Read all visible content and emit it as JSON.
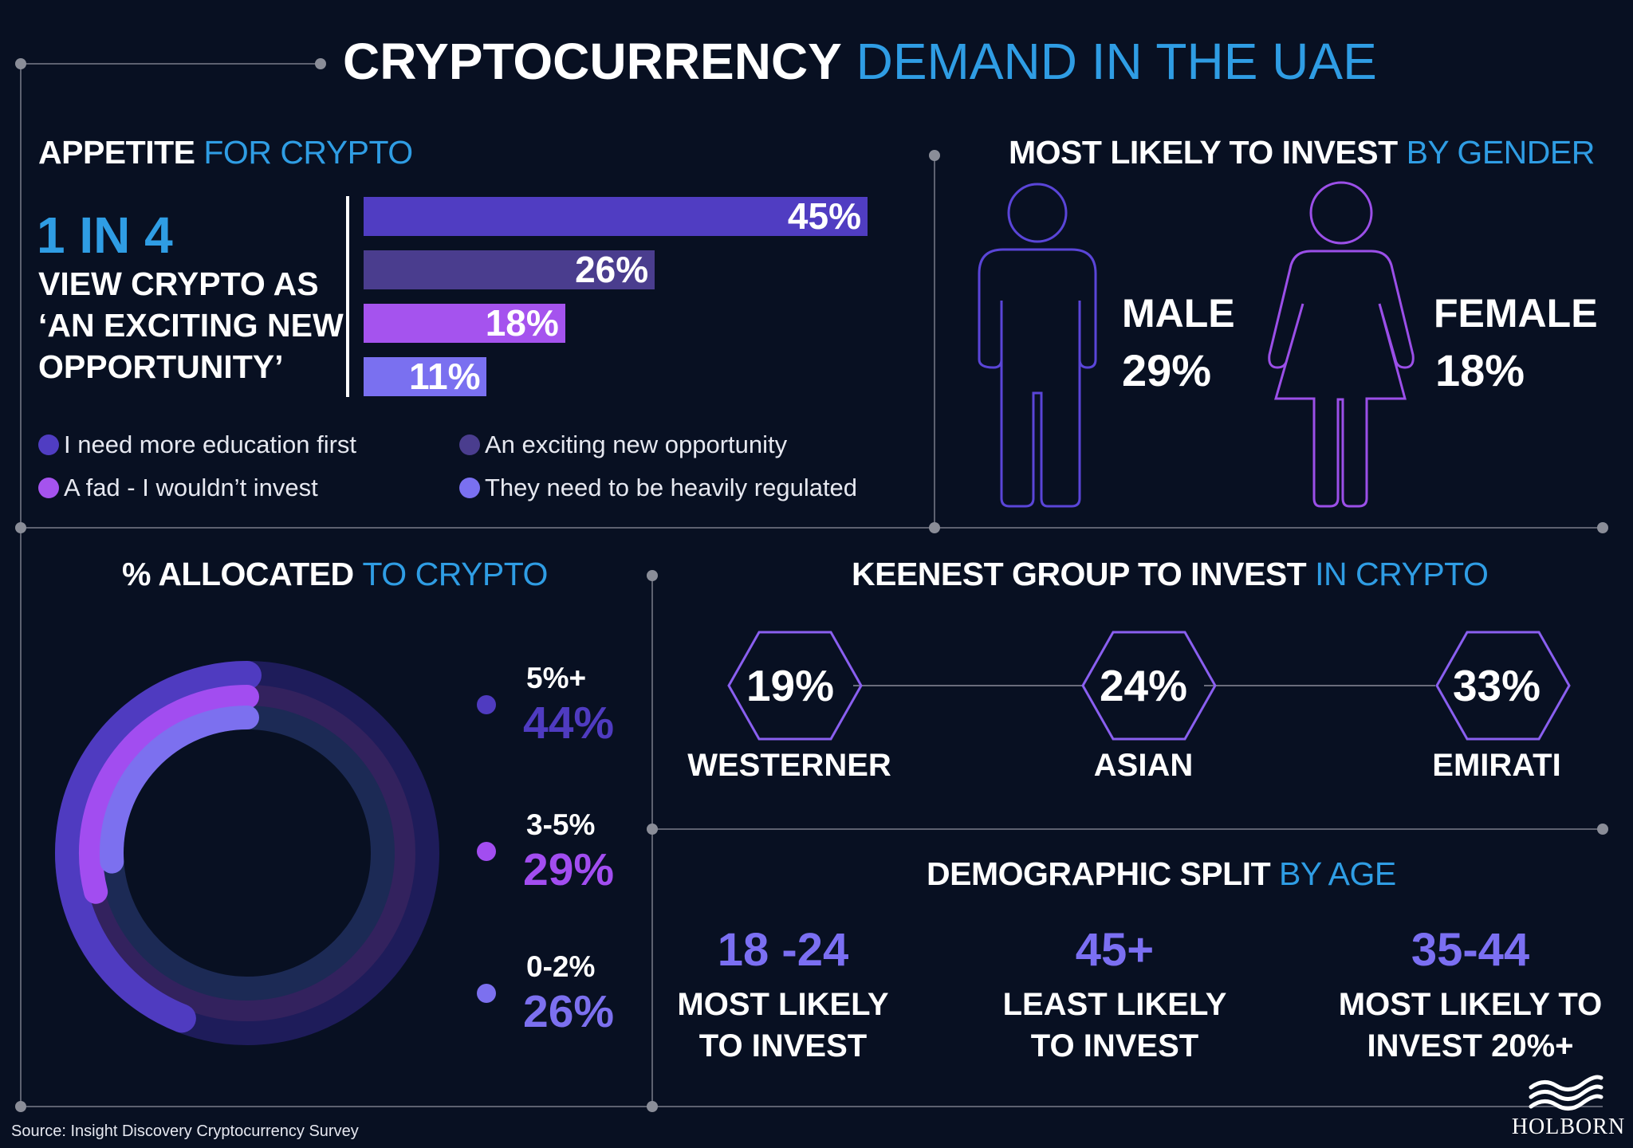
{
  "header": {
    "title_bold": "CRYPTOCURRENCY",
    "title_light": "DEMAND IN THE UAE"
  },
  "appetite": {
    "title_bold": "APPETITE",
    "title_light": "FOR CRYPTO",
    "headline": "1 IN 4",
    "subtext": [
      "VIEW CRYPTO AS",
      "‘AN EXCITING NEW",
      "OPPORTUNITY’"
    ]
  },
  "gender": {
    "title_bold": "MOST LIKELY TO INVEST",
    "title_light": "BY GENDER",
    "male_label": "MALE",
    "male_value": "29%",
    "female_label": "FEMALE",
    "female_value": "18%"
  },
  "allocated": {
    "title_bold": "% ALLOCATED",
    "title_light": "TO CRYPTO"
  },
  "keenest": {
    "title_bold": "KEENEST GROUP TO INVEST",
    "title_light": "IN CRYPTO",
    "groups": [
      {
        "value": "19%",
        "label": "WESTERNER"
      },
      {
        "value": "24%",
        "label": "ASIAN"
      },
      {
        "value": "33%",
        "label": "EMIRATI"
      }
    ]
  },
  "demographic": {
    "title_bold": "DEMOGRAPHIC SPLIT",
    "title_light": "BY AGE",
    "items": [
      {
        "value": "18 -24",
        "line1": "MOST LIKELY",
        "line2": "TO INVEST"
      },
      {
        "value": "45+",
        "line1": "LEAST LIKELY",
        "line2": "TO INVEST"
      },
      {
        "value": "35-44",
        "line1": "MOST LIKELY TO",
        "line2": "INVEST 20%+"
      }
    ]
  },
  "footer": {
    "source": "Source: Insight Discovery Cryptocurrency Survey",
    "logo": "HOLBORN"
  },
  "colors": {
    "background": "#081022",
    "accent_blue": "#2f9de4",
    "bar1": "#503dc2",
    "bar2": "#4a3d8e",
    "bar3": "#a553ee",
    "bar4": "#7a70f0",
    "hex_stroke": "#8a5ff0"
  },
  "chart_data": [
    {
      "type": "bar",
      "orientation": "horizontal",
      "categories": [
        "I need more education first",
        "An exciting new opportunity",
        "A fad - I wouldn’t invest",
        "They need to be heavily regulated"
      ],
      "values": [
        45,
        26,
        18,
        11
      ],
      "labels": [
        "45%",
        "26%",
        "18%",
        "11%"
      ],
      "colors": [
        "#503dc2",
        "#4a3d8e",
        "#a553ee",
        "#7a70f0"
      ],
      "legend": "bottom",
      "xlim": [
        0,
        45
      ]
    },
    {
      "type": "pie",
      "style": "radial-rings",
      "categories": [
        "5%+",
        "3-5%",
        "0-2%"
      ],
      "values": [
        44,
        29,
        26
      ],
      "labels": [
        "44%",
        "29%",
        "26%"
      ],
      "colors": [
        "#4f3bc0",
        "#a24df0",
        "#7c70ef"
      ],
      "legend": "right"
    }
  ]
}
